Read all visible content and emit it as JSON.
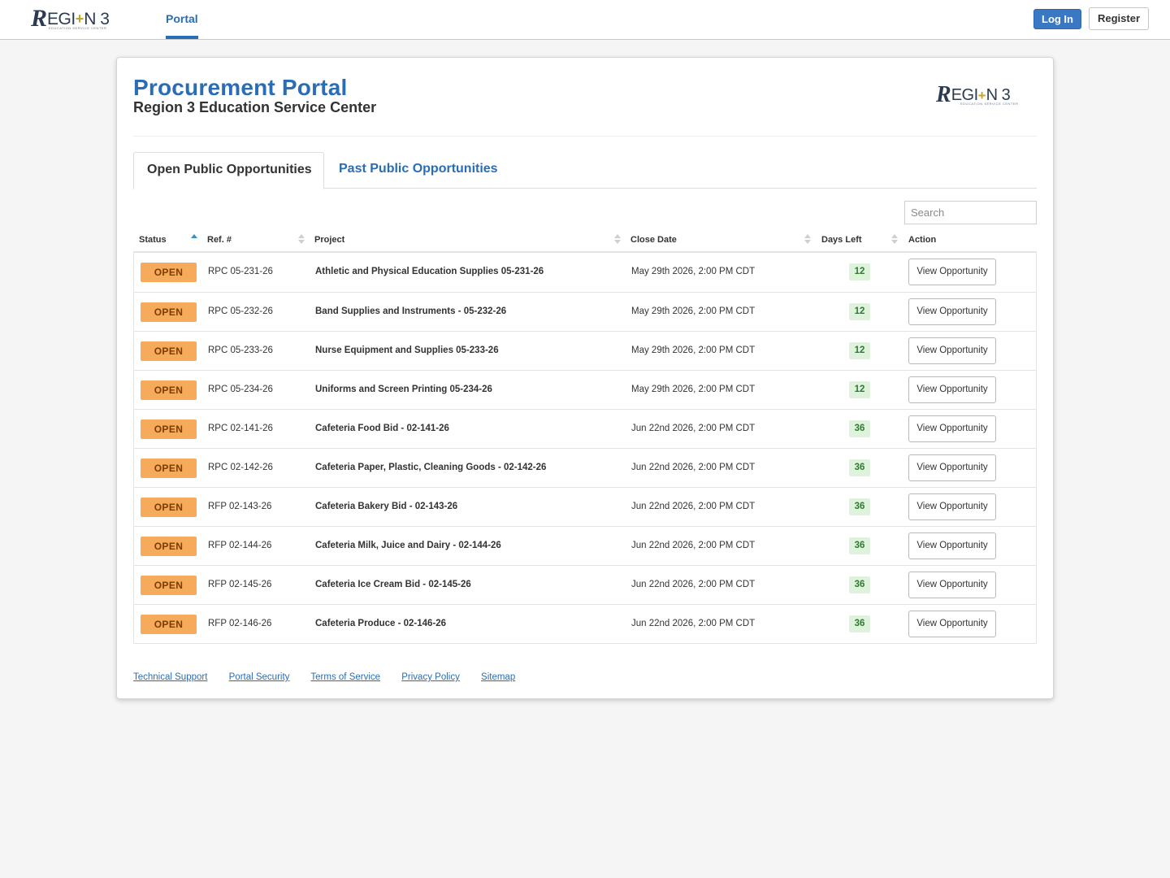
{
  "brand": {
    "logo_mark": "R",
    "logo_text_1": "EGI",
    "logo_star": "+",
    "logo_text_2": "N 3",
    "logo_tagline": "EDUCATION SERVICE CENTER"
  },
  "navbar": {
    "portal_label": "Portal",
    "login_label": "Log In",
    "register_label": "Register"
  },
  "header": {
    "title": "Procurement Portal",
    "subtitle": "Region 3 Education Service Center"
  },
  "tabs": [
    {
      "label": "Open Public Opportunities",
      "active": true
    },
    {
      "label": "Past Public Opportunities",
      "active": false
    }
  ],
  "search": {
    "placeholder": "Search",
    "value": ""
  },
  "table": {
    "columns": [
      "Status",
      "Ref. #",
      "Project",
      "Close Date",
      "Days Left",
      "Action"
    ],
    "sorted_column": "Status",
    "sort_direction": "ascending",
    "rows": [
      {
        "status": "OPEN",
        "ref": "RPC 05-231-26",
        "project": "Athletic and Physical Education Supplies 05-231-26",
        "close_date": "May 29th 2026, 2:00 PM CDT",
        "days_left": "12",
        "action": "View Opportunity"
      },
      {
        "status": "OPEN",
        "ref": "RPC 05-232-26",
        "project": "Band Supplies and Instruments - 05-232-26",
        "close_date": "May 29th 2026, 2:00 PM CDT",
        "days_left": "12",
        "action": "View Opportunity"
      },
      {
        "status": "OPEN",
        "ref": "RPC 05-233-26",
        "project": "Nurse Equipment and Supplies 05-233-26",
        "close_date": "May 29th 2026, 2:00 PM CDT",
        "days_left": "12",
        "action": "View Opportunity"
      },
      {
        "status": "OPEN",
        "ref": "RPC 05-234-26",
        "project": "Uniforms and Screen Printing 05-234-26",
        "close_date": "May 29th 2026, 2:00 PM CDT",
        "days_left": "12",
        "action": "View Opportunity"
      },
      {
        "status": "OPEN",
        "ref": "RPC 02-141-26",
        "project": "Cafeteria Food Bid - 02-141-26",
        "close_date": "Jun 22nd 2026, 2:00 PM CDT",
        "days_left": "36",
        "action": "View Opportunity"
      },
      {
        "status": "OPEN",
        "ref": "RPC 02-142-26",
        "project": "Cafeteria Paper, Plastic, Cleaning Goods - 02-142-26",
        "close_date": "Jun 22nd 2026, 2:00 PM CDT",
        "days_left": "36",
        "action": "View Opportunity"
      },
      {
        "status": "OPEN",
        "ref": "RFP 02-143-26",
        "project": "Cafeteria Bakery Bid - 02-143-26",
        "close_date": "Jun 22nd 2026, 2:00 PM CDT",
        "days_left": "36",
        "action": "View Opportunity"
      },
      {
        "status": "OPEN",
        "ref": "RFP 02-144-26",
        "project": "Cafeteria Milk, Juice and Dairy - 02-144-26",
        "close_date": "Jun 22nd 2026, 2:00 PM CDT",
        "days_left": "36",
        "action": "View Opportunity"
      },
      {
        "status": "OPEN",
        "ref": "RFP 02-145-26",
        "project": "Cafeteria Ice Cream Bid - 02-145-26",
        "close_date": "Jun 22nd 2026, 2:00 PM CDT",
        "days_left": "36",
        "action": "View Opportunity"
      },
      {
        "status": "OPEN",
        "ref": "RFP 02-146-26",
        "project": "Cafeteria Produce - 02-146-26",
        "close_date": "Jun 22nd 2026, 2:00 PM CDT",
        "days_left": "36",
        "action": "View Opportunity"
      }
    ]
  },
  "footer": {
    "links": [
      "Technical Support",
      "Portal Security",
      "Terms of Service",
      "Privacy Policy",
      "Sitemap"
    ]
  },
  "colors": {
    "accent": "#2a6db5",
    "login_button": "#3a78c3",
    "status_open": "#f5aa5c",
    "days_left_badge": "#def2dc"
  }
}
